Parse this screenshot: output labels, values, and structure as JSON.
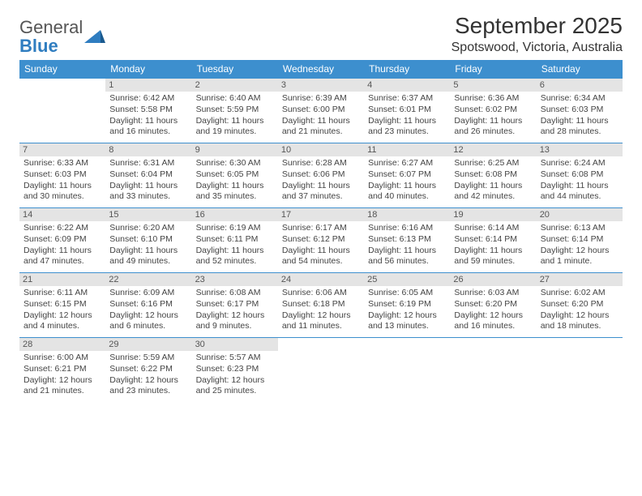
{
  "logo": {
    "line1": "General",
    "line2": "Blue"
  },
  "title": "September 2025",
  "subtitle": "Spotswood, Victoria, Australia",
  "colors": {
    "header_bg": "#3d8fce",
    "header_text": "#ffffff",
    "daynum_bg": "#e4e4e4",
    "border": "#3d8fce",
    "logo_blue": "#2f7dc0"
  },
  "weekdays": [
    "Sunday",
    "Monday",
    "Tuesday",
    "Wednesday",
    "Thursday",
    "Friday",
    "Saturday"
  ],
  "weeks": [
    [
      null,
      {
        "n": "1",
        "sr": "Sunrise: 6:42 AM",
        "ss": "Sunset: 5:58 PM",
        "dl": "Daylight: 11 hours and 16 minutes."
      },
      {
        "n": "2",
        "sr": "Sunrise: 6:40 AM",
        "ss": "Sunset: 5:59 PM",
        "dl": "Daylight: 11 hours and 19 minutes."
      },
      {
        "n": "3",
        "sr": "Sunrise: 6:39 AM",
        "ss": "Sunset: 6:00 PM",
        "dl": "Daylight: 11 hours and 21 minutes."
      },
      {
        "n": "4",
        "sr": "Sunrise: 6:37 AM",
        "ss": "Sunset: 6:01 PM",
        "dl": "Daylight: 11 hours and 23 minutes."
      },
      {
        "n": "5",
        "sr": "Sunrise: 6:36 AM",
        "ss": "Sunset: 6:02 PM",
        "dl": "Daylight: 11 hours and 26 minutes."
      },
      {
        "n": "6",
        "sr": "Sunrise: 6:34 AM",
        "ss": "Sunset: 6:03 PM",
        "dl": "Daylight: 11 hours and 28 minutes."
      }
    ],
    [
      {
        "n": "7",
        "sr": "Sunrise: 6:33 AM",
        "ss": "Sunset: 6:03 PM",
        "dl": "Daylight: 11 hours and 30 minutes."
      },
      {
        "n": "8",
        "sr": "Sunrise: 6:31 AM",
        "ss": "Sunset: 6:04 PM",
        "dl": "Daylight: 11 hours and 33 minutes."
      },
      {
        "n": "9",
        "sr": "Sunrise: 6:30 AM",
        "ss": "Sunset: 6:05 PM",
        "dl": "Daylight: 11 hours and 35 minutes."
      },
      {
        "n": "10",
        "sr": "Sunrise: 6:28 AM",
        "ss": "Sunset: 6:06 PM",
        "dl": "Daylight: 11 hours and 37 minutes."
      },
      {
        "n": "11",
        "sr": "Sunrise: 6:27 AM",
        "ss": "Sunset: 6:07 PM",
        "dl": "Daylight: 11 hours and 40 minutes."
      },
      {
        "n": "12",
        "sr": "Sunrise: 6:25 AM",
        "ss": "Sunset: 6:08 PM",
        "dl": "Daylight: 11 hours and 42 minutes."
      },
      {
        "n": "13",
        "sr": "Sunrise: 6:24 AM",
        "ss": "Sunset: 6:08 PM",
        "dl": "Daylight: 11 hours and 44 minutes."
      }
    ],
    [
      {
        "n": "14",
        "sr": "Sunrise: 6:22 AM",
        "ss": "Sunset: 6:09 PM",
        "dl": "Daylight: 11 hours and 47 minutes."
      },
      {
        "n": "15",
        "sr": "Sunrise: 6:20 AM",
        "ss": "Sunset: 6:10 PM",
        "dl": "Daylight: 11 hours and 49 minutes."
      },
      {
        "n": "16",
        "sr": "Sunrise: 6:19 AM",
        "ss": "Sunset: 6:11 PM",
        "dl": "Daylight: 11 hours and 52 minutes."
      },
      {
        "n": "17",
        "sr": "Sunrise: 6:17 AM",
        "ss": "Sunset: 6:12 PM",
        "dl": "Daylight: 11 hours and 54 minutes."
      },
      {
        "n": "18",
        "sr": "Sunrise: 6:16 AM",
        "ss": "Sunset: 6:13 PM",
        "dl": "Daylight: 11 hours and 56 minutes."
      },
      {
        "n": "19",
        "sr": "Sunrise: 6:14 AM",
        "ss": "Sunset: 6:14 PM",
        "dl": "Daylight: 11 hours and 59 minutes."
      },
      {
        "n": "20",
        "sr": "Sunrise: 6:13 AM",
        "ss": "Sunset: 6:14 PM",
        "dl": "Daylight: 12 hours and 1 minute."
      }
    ],
    [
      {
        "n": "21",
        "sr": "Sunrise: 6:11 AM",
        "ss": "Sunset: 6:15 PM",
        "dl": "Daylight: 12 hours and 4 minutes."
      },
      {
        "n": "22",
        "sr": "Sunrise: 6:09 AM",
        "ss": "Sunset: 6:16 PM",
        "dl": "Daylight: 12 hours and 6 minutes."
      },
      {
        "n": "23",
        "sr": "Sunrise: 6:08 AM",
        "ss": "Sunset: 6:17 PM",
        "dl": "Daylight: 12 hours and 9 minutes."
      },
      {
        "n": "24",
        "sr": "Sunrise: 6:06 AM",
        "ss": "Sunset: 6:18 PM",
        "dl": "Daylight: 12 hours and 11 minutes."
      },
      {
        "n": "25",
        "sr": "Sunrise: 6:05 AM",
        "ss": "Sunset: 6:19 PM",
        "dl": "Daylight: 12 hours and 13 minutes."
      },
      {
        "n": "26",
        "sr": "Sunrise: 6:03 AM",
        "ss": "Sunset: 6:20 PM",
        "dl": "Daylight: 12 hours and 16 minutes."
      },
      {
        "n": "27",
        "sr": "Sunrise: 6:02 AM",
        "ss": "Sunset: 6:20 PM",
        "dl": "Daylight: 12 hours and 18 minutes."
      }
    ],
    [
      {
        "n": "28",
        "sr": "Sunrise: 6:00 AM",
        "ss": "Sunset: 6:21 PM",
        "dl": "Daylight: 12 hours and 21 minutes."
      },
      {
        "n": "29",
        "sr": "Sunrise: 5:59 AM",
        "ss": "Sunset: 6:22 PM",
        "dl": "Daylight: 12 hours and 23 minutes."
      },
      {
        "n": "30",
        "sr": "Sunrise: 5:57 AM",
        "ss": "Sunset: 6:23 PM",
        "dl": "Daylight: 12 hours and 25 minutes."
      },
      null,
      null,
      null,
      null
    ]
  ]
}
